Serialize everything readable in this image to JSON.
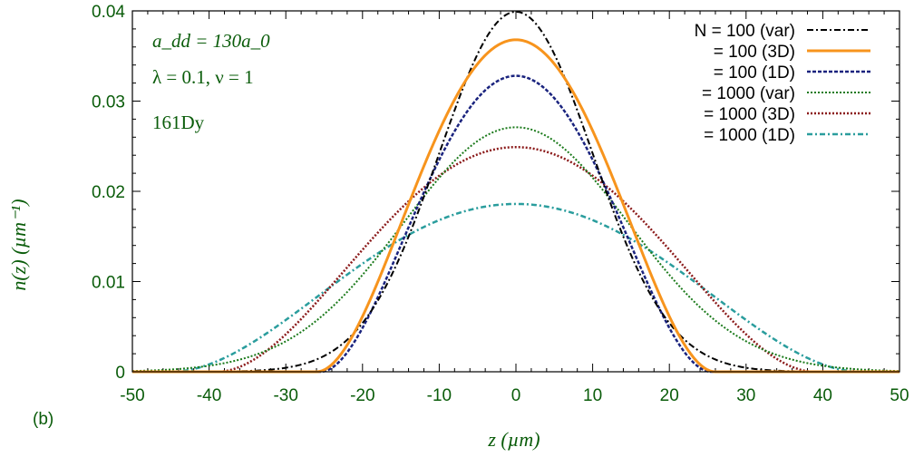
{
  "chart_data": {
    "type": "line",
    "title": "",
    "xlabel": "z (µm)",
    "ylabel": "n(z) (µm⁻¹)",
    "xlim": [
      -50,
      50
    ],
    "ylim": [
      0,
      0.04
    ],
    "xticks": [
      -50,
      -40,
      -30,
      -20,
      -10,
      0,
      10,
      20,
      30,
      40,
      50
    ],
    "yticks": [
      0,
      0.01,
      0.02,
      0.03,
      0.04
    ],
    "ytick_labels": [
      "0",
      "0.01",
      "0.02",
      "0.03",
      "0.04"
    ],
    "panel_label": "(b)",
    "annotations": {
      "add": "a_dd = 130a_0",
      "lambda_nu": "λ = 0.1, ν = 1",
      "isotope": "161Dy"
    },
    "legend_position": "top-right",
    "series": [
      {
        "name": "N = 100 (var)",
        "color": "#000000",
        "dash": "7,3,2,3",
        "width": 2,
        "peak": 0.0399,
        "shape": "gauss",
        "sigma": 10.0
      },
      {
        "name": "= 100 (3D)",
        "color": "#f7941d",
        "dash": "",
        "width": 3,
        "peak": 0.0368,
        "shape": "tf",
        "R": 26.0
      },
      {
        "name": "= 100 (1D)",
        "color": "#1a237e",
        "dash": "4,2",
        "width": 2.5,
        "peak": 0.0328,
        "shape": "tf",
        "R": 25.5
      },
      {
        "name": "= 1000 (var)",
        "color": "#1b7a1b",
        "dash": "2,2",
        "width": 2,
        "peak": 0.0271,
        "shape": "gauss",
        "sigma": 14.7
      },
      {
        "name": "= 1000 (3D)",
        "color": "#8b1a1a",
        "dash": "2,2",
        "width": 2.5,
        "peak": 0.0249,
        "shape": "tf",
        "R": 39.0
      },
      {
        "name": "= 1000 (1D)",
        "color": "#2a9d9d",
        "dash": "6,3,2,3",
        "width": 2.5,
        "peak": 0.0186,
        "shape": "tf",
        "R": 45.0
      }
    ]
  }
}
